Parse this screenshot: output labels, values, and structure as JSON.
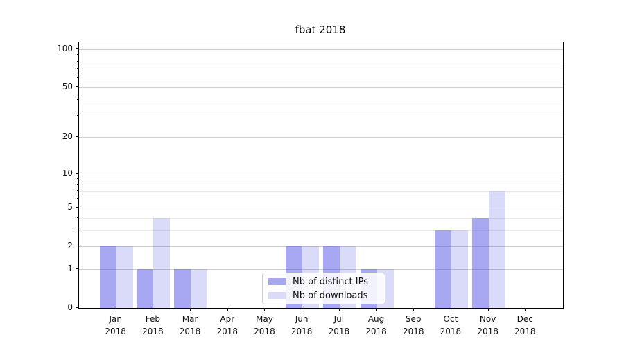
{
  "chart_data": {
    "type": "bar",
    "title": "fbat 2018",
    "x_months": [
      "Jan",
      "Feb",
      "Mar",
      "Apr",
      "May",
      "Jun",
      "Jul",
      "Aug",
      "Sep",
      "Oct",
      "Nov",
      "Dec"
    ],
    "x_year": "2018",
    "series": [
      {
        "name": "Nb of distinct IPs",
        "color": "rgba(81,81,229,0.5)",
        "values": [
          2,
          1,
          1,
          0,
          0,
          2,
          2,
          1,
          0,
          3,
          4,
          0
        ]
      },
      {
        "name": "Nb of downloads",
        "color": "rgba(81,81,229,0.21)",
        "values": [
          2,
          4,
          1,
          0,
          0,
          2,
          2,
          1,
          0,
          3,
          7,
          0
        ]
      }
    ],
    "y_scale": "log1p",
    "y_major_ticks": [
      0,
      1,
      2,
      5,
      10,
      20,
      50,
      100
    ],
    "y_minor_ticks": [
      3,
      4,
      6,
      7,
      8,
      9,
      30,
      40,
      60,
      70,
      80,
      90
    ],
    "ylim": [
      0,
      113
    ],
    "grid": true,
    "legend_position": "lower center",
    "frame_color": "#000000",
    "major_grid_color": "#cdcdcd",
    "minor_grid_color": "#ececec"
  }
}
